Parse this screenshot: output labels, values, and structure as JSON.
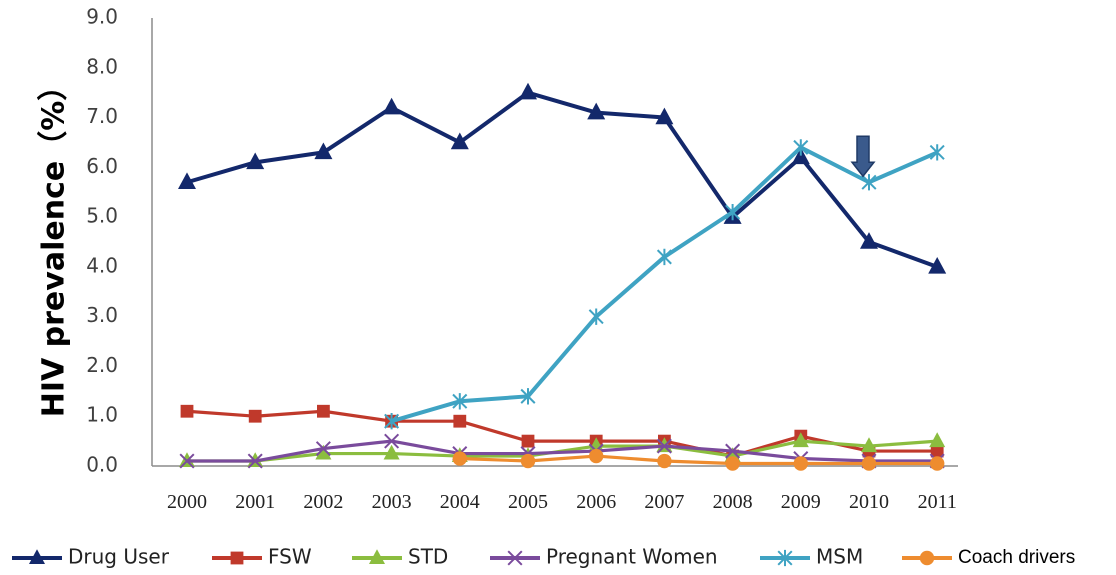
{
  "chart_data": {
    "type": "line",
    "title": "",
    "xlabel": "",
    "ylabel": "HIV  prevalence（%）",
    "ylim": [
      0,
      9
    ],
    "y_ticks": [
      "0.0",
      "1.0",
      "2.0",
      "3.0",
      "4.0",
      "5.0",
      "6.0",
      "7.0",
      "8.0",
      "9.0"
    ],
    "categories": [
      "2000",
      "2001",
      "2002",
      "2003",
      "2004",
      "2005",
      "2006",
      "2007",
      "2008",
      "2009",
      "2010",
      "2011"
    ],
    "grid": false,
    "legend_position": "bottom",
    "series": [
      {
        "name": "Drug User",
        "color": "#13286b",
        "marker": "triangle",
        "values": [
          5.7,
          6.1,
          6.3,
          7.2,
          6.5,
          7.5,
          7.1,
          7.0,
          5.0,
          6.2,
          4.5,
          4.0
        ]
      },
      {
        "name": "FSW",
        "color": "#c0392b",
        "marker": "square",
        "values": [
          1.1,
          1.0,
          1.1,
          0.9,
          0.9,
          0.5,
          0.5,
          0.5,
          0.2,
          0.6,
          0.3,
          0.3
        ]
      },
      {
        "name": "STD",
        "color": "#8bbd3f",
        "marker": "triangle",
        "values": [
          0.1,
          0.1,
          0.25,
          0.25,
          0.2,
          0.2,
          0.4,
          0.4,
          0.2,
          0.5,
          0.4,
          0.5
        ]
      },
      {
        "name": "Pregnant Women",
        "color": "#7a4b9c",
        "marker": "x",
        "values": [
          0.1,
          0.1,
          0.35,
          0.5,
          0.25,
          0.25,
          0.3,
          0.4,
          0.3,
          0.15,
          0.1,
          0.1
        ]
      },
      {
        "name": "MSM",
        "color": "#3fa3c3",
        "marker": "star",
        "values": [
          null,
          null,
          null,
          0.9,
          1.3,
          1.4,
          3.0,
          4.2,
          5.1,
          6.4,
          5.7,
          6.3
        ]
      },
      {
        "name": "Coach drivers",
        "color": "#ee8c2f",
        "marker": "circle",
        "values": [
          null,
          null,
          null,
          null,
          0.15,
          0.1,
          0.2,
          0.1,
          0.05,
          0.05,
          0.05,
          0.05
        ]
      }
    ],
    "annotations": [
      {
        "type": "arrow",
        "direction": "down",
        "x": "2010",
        "y": 5.7,
        "color": "#3a5a8c"
      }
    ]
  }
}
